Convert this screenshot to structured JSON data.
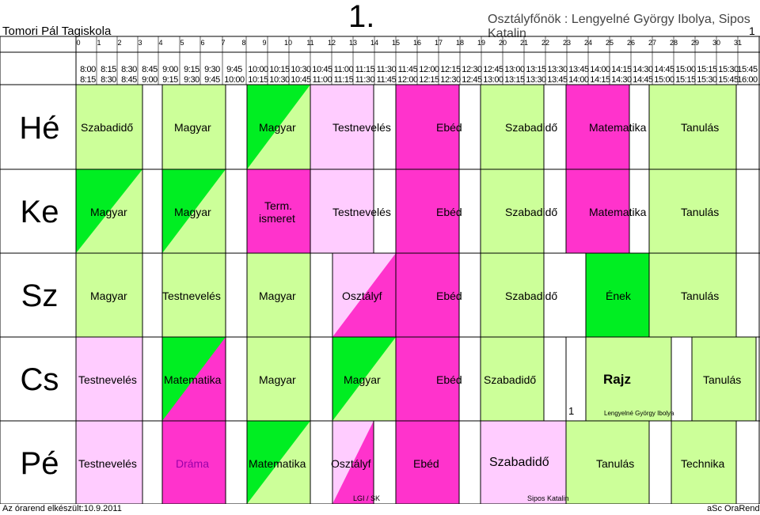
{
  "header": {
    "school": "Tomori Pál Tagiskola",
    "big_number": "1.",
    "teachers": "Osztályfőnök : Lengyelné György Ibolya, Sipos Katalin",
    "page_number": "1"
  },
  "period_numbers": [
    "0",
    "1",
    "2",
    "3",
    "4",
    "5",
    "6",
    "7",
    "8",
    "9",
    "10",
    "11",
    "12",
    "13",
    "14",
    "15",
    "16",
    "17",
    "18",
    "19",
    "20",
    "21",
    "22",
    "23",
    "24",
    "25",
    "26",
    "27",
    "28",
    "29",
    "30",
    "31"
  ],
  "time_start": [
    "8:00",
    "8:15",
    "8:30",
    "8:45",
    "9:00",
    "9:15",
    "9:30",
    "9:45",
    "10:00",
    "10:15",
    "10:30",
    "10:45",
    "11:00",
    "11:15",
    "11:30",
    "11:45",
    "12:00",
    "12:15",
    "12:30",
    "12:45",
    "13:00",
    "13:15",
    "13:30",
    "13:45",
    "14:00",
    "14:15",
    "14:30",
    "14:45",
    "15:00",
    "15:15",
    "15:30",
    "15:45"
  ],
  "time_end": [
    "8:15",
    "8:30",
    "8:45",
    "9:00",
    "9:15",
    "9:30",
    "9:45",
    "10:00",
    "10:15",
    "10:30",
    "10:45",
    "11:00",
    "11:15",
    "11:30",
    "11:45",
    "12:00",
    "12:15",
    "12:30",
    "12:45",
    "13:00",
    "13:15",
    "13:30",
    "13:45",
    "14:00",
    "14:15",
    "14:30",
    "14:45",
    "15:00",
    "15:15",
    "15:30",
    "15:45",
    "16:00"
  ],
  "colors": {
    "light_green": "#ccff99",
    "green": "#00ee22",
    "magenta": "#ff33cc",
    "light_pink": "#ffccff",
    "white": "#ffffff",
    "grid_line": "#000000"
  },
  "days": [
    {
      "label": "Hé",
      "lessons": [
        "Szabadidő",
        "Magyar",
        "Magyar",
        "Testnevelés",
        "Ebéd",
        "Szabadidő",
        "Matematika",
        "Tanulás"
      ]
    },
    {
      "label": "Ke",
      "lessons": [
        "Magyar",
        "Magyar",
        "Term.",
        "ismeret",
        "Testnevelés",
        "Ebéd",
        "Szabadidő",
        "Matematika",
        "Tanulás"
      ]
    },
    {
      "label": "Sz",
      "lessons": [
        "Magyar",
        "Testnevelés",
        "Magyar",
        "Osztályf",
        "Ebéd",
        "Szabadidő",
        "Ének",
        "Tanulás"
      ]
    },
    {
      "label": "Cs",
      "lessons": [
        "Testnevelés",
        "Matematika",
        "Magyar",
        "Magyar",
        "Ebéd",
        "Szabadidő",
        "Rajz",
        "Tanulás"
      ],
      "room_number": "1",
      "room_teacher": "Lengyelné György Ibolya"
    },
    {
      "label": "Pé",
      "lessons": [
        "Testnevelés",
        "Dráma",
        "Matematika",
        "Osztályf",
        "Ebéd",
        "Szabadidő",
        "Tanulás",
        "Technika"
      ],
      "note_1": "LGI / SK",
      "note_2": "Sipos Katalin"
    }
  ],
  "footer": {
    "created": "Az órarend elkészült:10.9.2011",
    "software": "aSc OraRend"
  }
}
